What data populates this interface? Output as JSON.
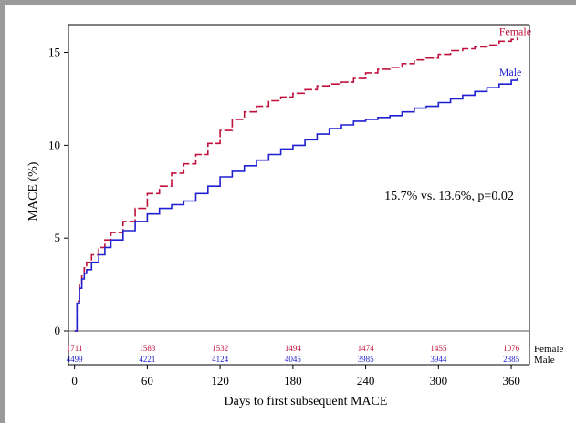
{
  "chart_data": {
    "type": "line",
    "xlabel": "Days to first subsequent MACE",
    "ylabel": "MACE (%)",
    "xlim": [
      -5,
      375
    ],
    "ylim": [
      0,
      16.5
    ],
    "x_ticks": [
      0,
      60,
      120,
      180,
      240,
      300,
      360
    ],
    "y_ticks": [
      0,
      5,
      10,
      15
    ],
    "annotation": "15.7% vs. 13.6%, p=0.02",
    "series": [
      {
        "name": "Female",
        "color": "#c0103c",
        "style": "dashed",
        "x": [
          0,
          2,
          4,
          6,
          8,
          10,
          14,
          20,
          25,
          30,
          40,
          50,
          60,
          70,
          80,
          90,
          100,
          110,
          120,
          130,
          140,
          150,
          160,
          170,
          180,
          190,
          200,
          210,
          220,
          230,
          240,
          250,
          260,
          270,
          280,
          290,
          300,
          310,
          320,
          330,
          340,
          350,
          360,
          365
        ],
        "y": [
          0,
          1.6,
          2.5,
          3.0,
          3.4,
          3.7,
          4.1,
          4.5,
          4.9,
          5.3,
          5.9,
          6.6,
          7.4,
          7.8,
          8.5,
          9.0,
          9.5,
          10.1,
          10.8,
          11.4,
          11.8,
          12.1,
          12.4,
          12.6,
          12.8,
          13.0,
          13.2,
          13.3,
          13.4,
          13.6,
          13.9,
          14.1,
          14.2,
          14.4,
          14.6,
          14.7,
          14.9,
          15.1,
          15.2,
          15.3,
          15.4,
          15.6,
          15.7,
          15.8
        ]
      },
      {
        "name": "Male",
        "color": "#2020d0",
        "style": "solid",
        "x": [
          0,
          2,
          4,
          6,
          8,
          10,
          14,
          20,
          25,
          30,
          40,
          50,
          60,
          70,
          80,
          90,
          100,
          110,
          120,
          130,
          140,
          150,
          160,
          170,
          180,
          190,
          200,
          210,
          220,
          230,
          240,
          250,
          260,
          270,
          280,
          290,
          300,
          310,
          320,
          330,
          340,
          350,
          360,
          365
        ],
        "y": [
          0,
          1.5,
          2.3,
          2.8,
          3.1,
          3.3,
          3.7,
          4.1,
          4.5,
          4.9,
          5.4,
          5.9,
          6.3,
          6.6,
          6.8,
          7.0,
          7.4,
          7.8,
          8.3,
          8.6,
          8.9,
          9.2,
          9.5,
          9.8,
          10.0,
          10.3,
          10.6,
          10.9,
          11.1,
          11.3,
          11.4,
          11.5,
          11.6,
          11.8,
          12.0,
          12.1,
          12.3,
          12.5,
          12.7,
          12.9,
          13.1,
          13.3,
          13.5,
          13.6
        ]
      }
    ],
    "at_risk": {
      "times": [
        0,
        60,
        120,
        180,
        240,
        300,
        360
      ],
      "rows": [
        {
          "label": "Female",
          "color": "#c0103c",
          "values": [
            "1711",
            "1583",
            "1532",
            "1494",
            "1474",
            "1455",
            "1076"
          ]
        },
        {
          "label": "Male",
          "color": "#2020d0",
          "values": [
            "4499",
            "4221",
            "4124",
            "4045",
            "3985",
            "3944",
            "2885"
          ]
        }
      ]
    }
  }
}
